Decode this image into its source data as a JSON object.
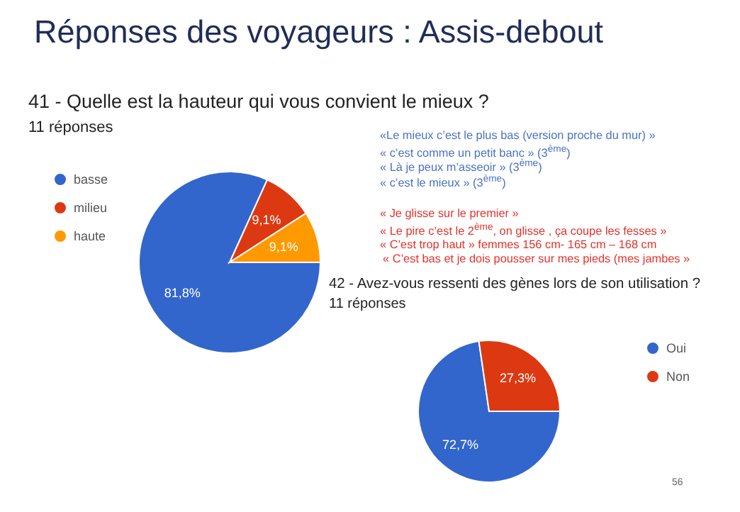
{
  "chart_data": [
    {
      "type": "other",
      "title": "Réponses des voyageurs : Assis-debout"
    },
    {
      "type": "pie",
      "title": "41 - Quelle est la hauteur qui vous convient le mieux ?",
      "subtitle": "11 réponses",
      "categories": [
        "basse",
        "milieu",
        "haute"
      ],
      "values": [
        81.8,
        9.1,
        9.1
      ],
      "value_labels": [
        "81,8%",
        "9,1%",
        "9,1%"
      ],
      "colors": [
        "#3366cc",
        "#dc3912",
        "#ff9900"
      ],
      "legend": "left",
      "annotations": [
        "«Le mieux c’est le plus bas (version proche du mur) »",
        "« c’est comme un petit banc » (3$^{ème}$)",
        "« Là je peux m’asseoir  » (3$^{ème}$)",
        "« c’est le mieux » (3$^{ème}$)",
        "« Je glisse sur le premier »",
        "« Le pire c’est le 2$^{ème}$, on glisse , ça coupe les fesses »",
        "« C’est trop haut » femmes 156 cm- 165 cm – 168 cm",
        "« C’est bas et je dois pousser sur mes pieds (mes jambes »"
      ]
    },
    {
      "type": "pie",
      "title": "42 - Avez-vous ressenti des gènes lors de son utilisation ?",
      "subtitle": "11 réponses",
      "categories": [
        "Oui",
        "Non"
      ],
      "values": [
        72.7,
        27.3
      ],
      "value_labels": [
        "72,7%",
        "27,3%"
      ],
      "colors": [
        "#3366cc",
        "#dc3912"
      ],
      "legend": "right",
      "annotations": [
        "56"
      ]
    }
  ]
}
